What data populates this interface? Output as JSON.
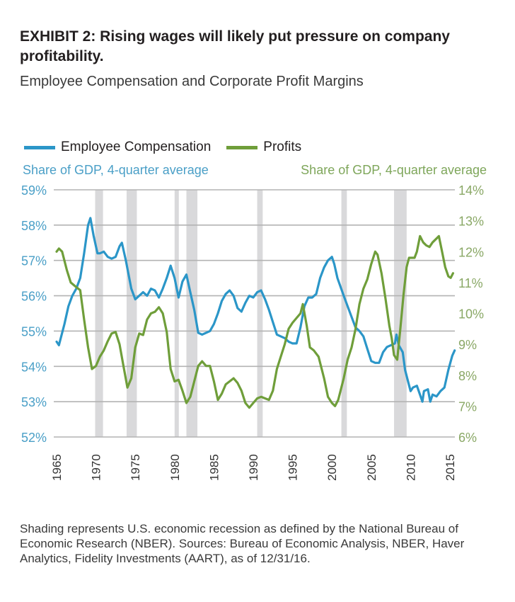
{
  "header": {
    "title": "EXHIBIT 2: Rising wages will likely put pressure on company profitability.",
    "subtitle": "Employee Compensation and Corporate Profit Margins"
  },
  "footer": {
    "note": "Shading represents U.S. economic recession as defined by the National Bureau of Economic Research (NBER). Sources: Bureau of Economic Analysis, NBER, Haver Analytics, Fidelity Investments (AART), as of 12/31/16."
  },
  "chart_data": {
    "type": "line",
    "title": "Employee Compensation and Corporate Profit Margins",
    "xlabel": "",
    "ylabel_left": "Share of GDP, 4-quarter average",
    "ylabel_right": "Share of GDP, 4-quarter average",
    "legend_position": "top-left",
    "grid": true,
    "xlim": [
      1965,
      2016
    ],
    "ylim_left": [
      52,
      59
    ],
    "ylim_right": [
      6,
      14
    ],
    "x_ticks": [
      "1965",
      "1970",
      "1975",
      "1980",
      "1985",
      "1990",
      "1995",
      "2000",
      "2005",
      "2010",
      "2015"
    ],
    "y_ticks_left": [
      "59%",
      "58%",
      "57%",
      "56%",
      "55%",
      "54%",
      "53%",
      "52%"
    ],
    "y_ticks_right": [
      "14%",
      "13%",
      "12%",
      "11%",
      "10%",
      "9%",
      "8%",
      "7%",
      "6%"
    ],
    "recessions": [
      [
        1969.9,
        1970.9
      ],
      [
        1973.9,
        1975.2
      ],
      [
        1980.0,
        1980.5
      ],
      [
        1981.5,
        1982.9
      ],
      [
        1990.5,
        1991.2
      ],
      [
        2001.2,
        2001.9
      ],
      [
        2007.9,
        2009.5
      ]
    ],
    "colors": {
      "compensation": "#2b96c8",
      "profits": "#6f9e3a",
      "recession": "#d9d9db",
      "grid": "#b3b3b3"
    },
    "series": [
      {
        "name": "Employee Compensation",
        "axis": "left",
        "x": [
          1965.0,
          1965.3,
          1966,
          1966.5,
          1967,
          1967.5,
          1968,
          1968.5,
          1969,
          1969.3,
          1969.7,
          1970.2,
          1970.5,
          1971,
          1971.5,
          1972,
          1972.5,
          1973,
          1973.3,
          1973.8,
          1974.5,
          1975,
          1975.5,
          1976,
          1976.5,
          1977,
          1977.5,
          1978,
          1978.5,
          1979,
          1979.5,
          1980,
          1980.5,
          1981,
          1981.5,
          1982,
          1982.5,
          1983,
          1983.5,
          1984,
          1984.5,
          1985,
          1985.5,
          1986,
          1986.5,
          1987,
          1987.5,
          1988,
          1988.5,
          1989,
          1989.5,
          1990,
          1990.5,
          1991,
          1991.5,
          1992,
          1992.5,
          1993,
          1993.5,
          1994,
          1994.5,
          1995,
          1995.5,
          1996,
          1996.5,
          1997,
          1997.5,
          1998,
          1998.5,
          1999,
          1999.5,
          2000,
          2000.3,
          2000.7,
          2001.5,
          2002,
          2002.5,
          2003,
          2003.5,
          2004,
          2004.5,
          2005,
          2005.5,
          2006,
          2006.5,
          2007,
          2007.5,
          2008,
          2008.2,
          2008.5,
          2009,
          2009.3,
          2009.7,
          2010,
          2010.3,
          2010.8,
          2011.2,
          2011.5,
          2011.7,
          2012.2,
          2012.5,
          2012.8,
          2013.3,
          2013.8,
          2014.3,
          2014.8,
          2015.3,
          2015.6
        ],
        "values": [
          54.7,
          54.6,
          55.2,
          55.7,
          56.0,
          56.2,
          56.5,
          57.2,
          58.0,
          58.2,
          57.7,
          57.2,
          57.2,
          57.25,
          57.1,
          57.05,
          57.1,
          57.4,
          57.5,
          57.0,
          56.2,
          55.9,
          56.0,
          56.1,
          56.0,
          56.2,
          56.15,
          55.95,
          56.2,
          56.5,
          56.85,
          56.5,
          55.95,
          56.4,
          56.6,
          56.1,
          55.6,
          54.95,
          54.9,
          54.95,
          55.0,
          55.2,
          55.5,
          55.85,
          56.05,
          56.15,
          56.0,
          55.65,
          55.55,
          55.8,
          56.0,
          55.95,
          56.1,
          56.15,
          55.9,
          55.6,
          55.25,
          54.9,
          54.85,
          54.8,
          54.7,
          54.65,
          54.65,
          55.1,
          55.7,
          55.95,
          55.95,
          56.05,
          56.5,
          56.8,
          57.0,
          57.1,
          56.9,
          56.5,
          56.0,
          55.7,
          55.4,
          55.1,
          55.0,
          54.85,
          54.5,
          54.15,
          54.1,
          54.1,
          54.4,
          54.55,
          54.6,
          54.65,
          54.9,
          54.6,
          54.4,
          53.9,
          53.55,
          53.3,
          53.4,
          53.45,
          53.2,
          53.0,
          53.3,
          53.35,
          53.0,
          53.2,
          53.15,
          53.3,
          53.4,
          53.9,
          54.3,
          54.45
        ]
      },
      {
        "name": "Profits",
        "axis": "right",
        "x": [
          1965,
          1965.3,
          1965.7,
          1966.3,
          1966.8,
          1967.5,
          1968,
          1968.5,
          1969,
          1969.5,
          1970,
          1970.5,
          1971,
          1971.5,
          1972,
          1972.5,
          1973,
          1973.5,
          1974,
          1974.5,
          1975,
          1975.5,
          1976,
          1976.5,
          1977,
          1977.5,
          1978,
          1978.5,
          1979,
          1979.5,
          1980,
          1980.5,
          1981,
          1981.5,
          1982,
          1982.5,
          1983,
          1983.5,
          1984,
          1984.5,
          1985,
          1985.5,
          1986,
          1986.5,
          1987,
          1987.5,
          1988,
          1988.5,
          1989,
          1989.5,
          1990,
          1990.5,
          1991,
          1991.5,
          1992,
          1992.5,
          1993,
          1993.5,
          1994,
          1994.5,
          1995,
          1995.5,
          1996,
          1996.3,
          1996.8,
          1997.2,
          1997.7,
          1998.3,
          1999,
          1999.5,
          2000,
          2000.4,
          2000.8,
          2001.5,
          2002,
          2002.5,
          2003,
          2003.5,
          2004,
          2004.5,
          2005,
          2005.5,
          2005.8,
          2006.3,
          2006.8,
          2007.3,
          2007.6,
          2007.9,
          2008.3,
          2008.7,
          2009.1,
          2009.5,
          2009.8,
          2010.2,
          2010.5,
          2010.8,
          2011.2,
          2011.6,
          2012.0,
          2012.4,
          2012.8,
          2013.2,
          2013.6,
          2014.0,
          2014.4,
          2014.8,
          2015.1,
          2015.4
        ],
        "values": [
          12.0,
          12.1,
          12.0,
          11.4,
          11.0,
          10.85,
          10.75,
          9.8,
          8.9,
          8.2,
          8.3,
          8.6,
          8.8,
          9.1,
          9.35,
          9.4,
          9.0,
          8.3,
          7.6,
          7.9,
          8.9,
          9.35,
          9.3,
          9.8,
          10.0,
          10.05,
          10.2,
          10.0,
          9.4,
          8.2,
          7.8,
          7.85,
          7.5,
          7.1,
          7.3,
          7.8,
          8.3,
          8.45,
          8.3,
          8.3,
          7.8,
          7.2,
          7.4,
          7.7,
          7.8,
          7.9,
          7.75,
          7.5,
          7.1,
          6.95,
          7.1,
          7.25,
          7.3,
          7.25,
          7.2,
          7.5,
          8.2,
          8.6,
          9.0,
          9.5,
          9.7,
          9.85,
          10.0,
          10.3,
          9.6,
          8.9,
          8.8,
          8.6,
          7.9,
          7.3,
          7.1,
          7.0,
          7.2,
          7.9,
          8.5,
          8.9,
          9.5,
          10.3,
          10.8,
          11.1,
          11.6,
          12.0,
          11.9,
          11.3,
          10.5,
          9.6,
          9.2,
          8.65,
          8.5,
          9.5,
          10.6,
          11.5,
          11.8,
          11.8,
          11.8,
          12.0,
          12.5,
          12.3,
          12.2,
          12.15,
          12.3,
          12.4,
          12.5,
          12.0,
          11.5,
          11.2,
          11.15,
          11.3
        ]
      }
    ]
  }
}
